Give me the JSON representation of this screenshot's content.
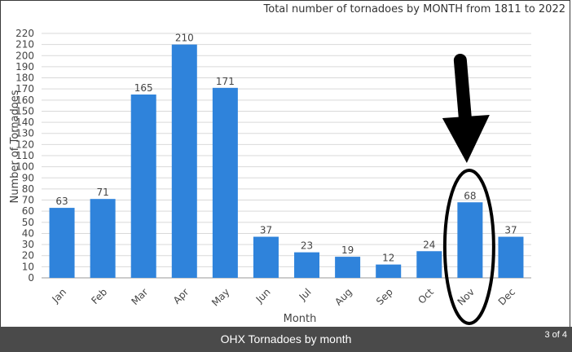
{
  "chart_data": {
    "type": "bar",
    "title": "Total number of tornadoes by MONTH from 1811 to 2022",
    "xlabel": "Month",
    "ylabel": "Number of Tornadoes",
    "categories": [
      "Jan",
      "Feb",
      "Mar",
      "Apr",
      "May",
      "Jun",
      "Jul",
      "Aug",
      "Sep",
      "Oct",
      "Nov",
      "Dec"
    ],
    "values": [
      63,
      71,
      165,
      210,
      171,
      37,
      23,
      19,
      12,
      24,
      68,
      37
    ],
    "ylim": [
      0,
      220
    ],
    "ytick_step": 10,
    "grid": true,
    "bar_color": "#2f83db",
    "highlight": {
      "category": "Nov",
      "marker": "circle-and-arrow",
      "color": "#000000"
    }
  },
  "caption": {
    "text": "OHX Tornadoes by month",
    "page_counter": "3 of 4",
    "background": "#4a4a4a"
  }
}
